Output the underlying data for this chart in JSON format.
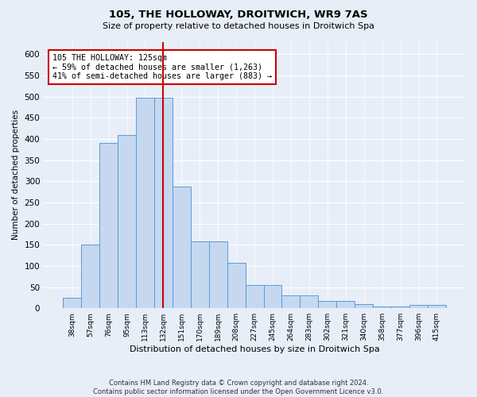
{
  "title1": "105, THE HOLLOWAY, DROITWICH, WR9 7AS",
  "title2": "Size of property relative to detached houses in Droitwich Spa",
  "xlabel": "Distribution of detached houses by size in Droitwich Spa",
  "ylabel": "Number of detached properties",
  "categories": [
    "38sqm",
    "57sqm",
    "76sqm",
    "95sqm",
    "113sqm",
    "132sqm",
    "151sqm",
    "170sqm",
    "189sqm",
    "208sqm",
    "227sqm",
    "245sqm",
    "264sqm",
    "283sqm",
    "302sqm",
    "321sqm",
    "340sqm",
    "358sqm",
    "377sqm",
    "396sqm",
    "415sqm"
  ],
  "values": [
    25,
    150,
    390,
    410,
    498,
    498,
    287,
    158,
    158,
    108,
    55,
    55,
    30,
    30,
    17,
    17,
    10,
    5,
    5,
    7,
    7
  ],
  "bar_color": "#c5d8f0",
  "bar_edge_color": "#5b9bd5",
  "vline_x": 5.0,
  "vline_color": "#cc0000",
  "annotation_text": "105 THE HOLLOWAY: 125sqm\n← 59% of detached houses are smaller (1,263)\n41% of semi-detached houses are larger (883) →",
  "annotation_box_color": "#ffffff",
  "annotation_box_edge": "#cc0000",
  "ylim": [
    0,
    630
  ],
  "yticks": [
    0,
    50,
    100,
    150,
    200,
    250,
    300,
    350,
    400,
    450,
    500,
    550,
    600
  ],
  "footnote": "Contains HM Land Registry data © Crown copyright and database right 2024.\nContains public sector information licensed under the Open Government Licence v3.0.",
  "bg_color": "#e8eef8",
  "plot_bg_color": "#e8eef8",
  "grid_color": "#ffffff"
}
